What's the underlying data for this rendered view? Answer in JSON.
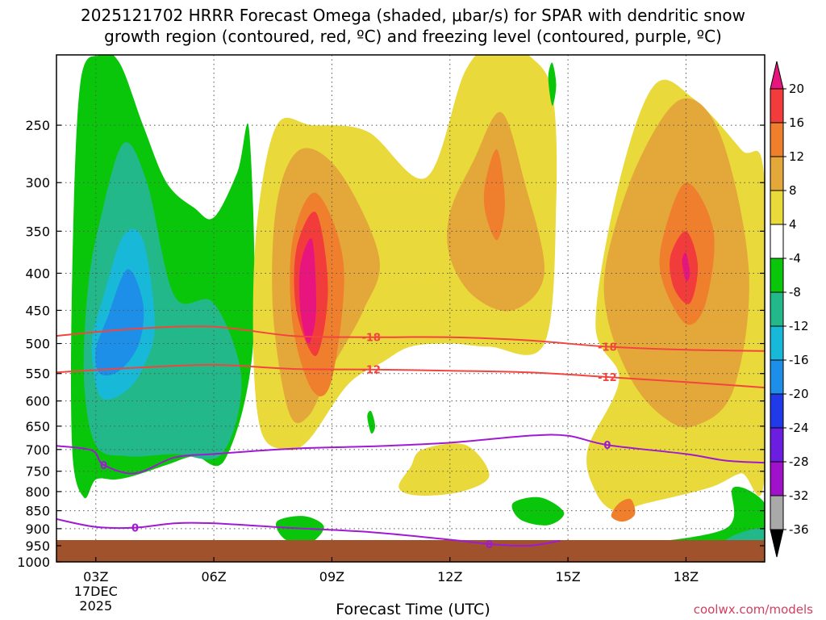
{
  "title_line1": "2025121702 HRRR Forecast Omega (shaded, μbar/s) for SPAR with dendritic snow",
  "title_line2": "growth region (contoured, red, ºC) and freezing level (contoured, purple, ºC)",
  "xlabel": "Forecast Time (UTC)",
  "credit": "coolwx.com/models",
  "chart_data": {
    "type": "heatmap",
    "x_axis": {
      "ticks": [
        "03Z",
        "06Z",
        "09Z",
        "12Z",
        "15Z",
        "18Z"
      ],
      "tick_hours": [
        3,
        6,
        9,
        12,
        15,
        18
      ],
      "range_hours": [
        2,
        20
      ],
      "date_label": [
        "17DEC",
        "2025"
      ]
    },
    "y_axis": {
      "label": "",
      "scale": "log",
      "ticks": [
        250,
        300,
        350,
        400,
        450,
        500,
        550,
        600,
        650,
        700,
        750,
        800,
        850,
        900,
        950,
        1000
      ],
      "range": [
        200,
        1000
      ]
    },
    "grid": true,
    "colorbar": {
      "labels": [
        "20",
        "16",
        "12",
        "8",
        "4",
        "-4",
        "-8",
        "-12",
        "-16",
        "-20",
        "-24",
        "-28",
        "-32",
        "-36"
      ],
      "colors": [
        "#e8157e",
        "#f23c3c",
        "#ef7f2d",
        "#e4a83a",
        "#e9d93a",
        "#ffffff",
        "#0ac60a",
        "#23b889",
        "#18b8d8",
        "#1e8fe8",
        "#1f3ae6",
        "#6b1ee0",
        "#9f12c9",
        "#a9a9a9"
      ]
    },
    "contours": [
      {
        "color": "#f2453f",
        "label": "-18",
        "hours": [
          2,
          4,
          6,
          8,
          10,
          12,
          14,
          16,
          18,
          20
        ],
        "pressure": [
          488,
          477,
          474,
          488,
          490,
          490,
          495,
          505,
          510,
          512
        ]
      },
      {
        "color": "#f2453f",
        "label": "-12",
        "hours": [
          2,
          4,
          6,
          8,
          10,
          12,
          14,
          16,
          18,
          20
        ],
        "pressure": [
          548,
          540,
          535,
          542,
          543,
          545,
          548,
          556,
          565,
          575
        ]
      },
      {
        "color": "#9f1ad2",
        "label": "0",
        "hours": [
          2,
          2.9,
          3.2,
          4,
          5,
          6,
          8,
          10,
          12,
          14,
          15,
          16,
          18,
          19,
          20
        ],
        "pressure": [
          692,
          702,
          735,
          755,
          718,
          710,
          698,
          693,
          685,
          670,
          670,
          690,
          710,
          725,
          730
        ]
      },
      {
        "color": "#9f1ad2",
        "label": "0",
        "hours": [
          2,
          3,
          4,
          5,
          6,
          8,
          10,
          12,
          13,
          14,
          14.8
        ],
        "pressure": [
          873,
          895,
          897,
          885,
          885,
          898,
          910,
          932,
          945,
          950,
          935
        ]
      }
    ],
    "shaded_regions": [
      {
        "value": "-8",
        "hours": [
          2.6,
          3.1,
          3.6,
          4.2,
          4.8,
          5.5,
          6.0,
          6.6,
          6.9,
          7.0,
          6.3,
          5.5,
          4.8,
          4.0,
          3.5,
          3.0,
          2.7,
          2.4,
          2.4
        ],
        "pressure": [
          220,
          200,
          205,
          250,
          300,
          325,
          335,
          290,
          255,
          500,
          720,
          715,
          735,
          760,
          770,
          770,
          815,
          700,
          400
        ]
      },
      {
        "value": "-12",
        "hours": [
          3.1,
          3.7,
          4.3,
          5.0,
          6.0,
          6.7,
          6.2,
          5.0,
          3.8,
          3.0,
          2.7,
          2.8
        ],
        "pressure": [
          340,
          265,
          300,
          430,
          440,
          560,
          710,
          710,
          715,
          690,
          560,
          420
        ]
      },
      {
        "value": "-16",
        "hours": [
          3.2,
          3.7,
          4.2,
          4.5,
          4.2,
          3.7,
          3.1,
          2.9
        ],
        "pressure": [
          430,
          355,
          360,
          470,
          540,
          585,
          590,
          500
        ]
      },
      {
        "value": "-20",
        "hours": [
          3.3,
          3.8,
          4.2,
          4.1,
          3.6,
          3.1,
          3.0
        ],
        "pressure": [
          460,
          395,
          440,
          500,
          545,
          550,
          510
        ]
      },
      {
        "value": "4",
        "hours": [
          7.1,
          7.6,
          8.5,
          9.9,
          11.4,
          12.4,
          13.3,
          14.0,
          14.6,
          14.7,
          14.4,
          13.0,
          12.0,
          11.0,
          10.3,
          9.4,
          8.4,
          7.8,
          7.2,
          7.0
        ],
        "pressure": [
          340,
          250,
          250,
          255,
          295,
          210,
          190,
          200,
          225,
          320,
          500,
          505,
          500,
          505,
          530,
          570,
          680,
          700,
          660,
          500
        ]
      },
      {
        "value": "4",
        "hours": [
          15.7,
          16.3,
          17.2,
          18.2,
          19.4,
          20.0,
          20.0,
          19.4,
          18.6,
          17.0,
          16.2,
          15.7,
          15.5,
          16.3
        ],
        "pressure": [
          470,
          300,
          220,
          230,
          270,
          300,
          760,
          755,
          790,
          830,
          850,
          800,
          700,
          560
        ]
      },
      {
        "value": "4",
        "hours": [
          11.3,
          12.4,
          13.0,
          12.3,
          11.2,
          10.7,
          11.0
        ],
        "pressure": [
          700,
          690,
          760,
          800,
          810,
          790,
          740
        ]
      },
      {
        "value": "8",
        "hours": [
          7.6,
          8.2,
          9.2,
          10.2,
          9.8,
          9.0,
          8.4,
          7.9,
          7.5
        ],
        "pressure": [
          320,
          270,
          290,
          380,
          450,
          540,
          630,
          620,
          450
        ]
      },
      {
        "value": "8",
        "hours": [
          12.0,
          12.6,
          13.3,
          13.9,
          14.4,
          13.6,
          12.6,
          12.0
        ],
        "pressure": [
          330,
          280,
          240,
          300,
          400,
          450,
          430,
          380
        ]
      },
      {
        "value": "8",
        "hours": [
          16.0,
          16.8,
          17.9,
          18.9,
          19.6,
          19.2,
          18.2,
          17.4,
          16.6,
          16.0
        ],
        "pressure": [
          380,
          280,
          230,
          260,
          400,
          580,
          650,
          630,
          560,
          460
        ]
      },
      {
        "value": "12",
        "hours": [
          8.0,
          8.6,
          9.3,
          9.0,
          8.5,
          8.0
        ],
        "pressure": [
          360,
          310,
          390,
          560,
          580,
          470
        ]
      },
      {
        "value": "12",
        "hours": [
          12.9,
          13.2,
          13.4,
          13.2,
          12.9
        ],
        "pressure": [
          300,
          270,
          320,
          360,
          330
        ]
      },
      {
        "value": "12",
        "hours": [
          17.4,
          18.0,
          18.7,
          18.5,
          18.0,
          17.4
        ],
        "pressure": [
          360,
          300,
          350,
          440,
          470,
          410
        ]
      },
      {
        "value": "12",
        "hours": [
          16.3,
          16.6,
          16.7,
          16.4,
          16.1
        ],
        "pressure": [
          830,
          820,
          860,
          880,
          865
        ]
      },
      {
        "value": "16",
        "hours": [
          8.1,
          8.6,
          8.9,
          8.6,
          8.1
        ],
        "pressure": [
          370,
          330,
          420,
          520,
          450
        ]
      },
      {
        "value": "16",
        "hours": [
          17.6,
          18.0,
          18.3,
          18.1,
          17.7
        ],
        "pressure": [
          380,
          350,
          390,
          440,
          420
        ]
      },
      {
        "value": "20",
        "hours": [
          8.2,
          8.5,
          8.6,
          8.4,
          8.2
        ],
        "pressure": [
          390,
          360,
          450,
          500,
          450
        ]
      },
      {
        "value": "20",
        "hours": [
          17.9,
          18.0,
          18.1,
          18.0
        ],
        "pressure": [
          385,
          375,
          400,
          410
        ]
      },
      {
        "value": "-8",
        "hours": [
          7.6,
          8.3,
          8.8,
          8.4,
          7.8
        ],
        "pressure": [
          880,
          865,
          895,
          945,
          930
        ]
      },
      {
        "value": "-8",
        "hours": [
          13.6,
          14.3,
          14.9,
          14.5,
          13.8
        ],
        "pressure": [
          830,
          815,
          855,
          890,
          875
        ]
      },
      {
        "value": "-8",
        "hours": [
          19.2,
          20.0,
          20.0,
          18.6,
          17.0,
          16.4,
          19.0
        ],
        "pressure": [
          790,
          830,
          930,
          935,
          945,
          950,
          900
        ]
      },
      {
        "value": "-8",
        "hours": [
          14.5,
          14.6,
          14.7,
          14.6
        ],
        "pressure": [
          215,
          205,
          220,
          235
        ]
      },
      {
        "value": "-8",
        "hours": [
          9.9,
          10.0,
          10.1,
          10.0
        ],
        "pressure": [
          630,
          620,
          650,
          665
        ]
      },
      {
        "value": "-12",
        "hours": [
          19.2,
          20.0,
          20.0,
          18.8
        ],
        "pressure": [
          920,
          900,
          960,
          965
        ]
      }
    ]
  }
}
